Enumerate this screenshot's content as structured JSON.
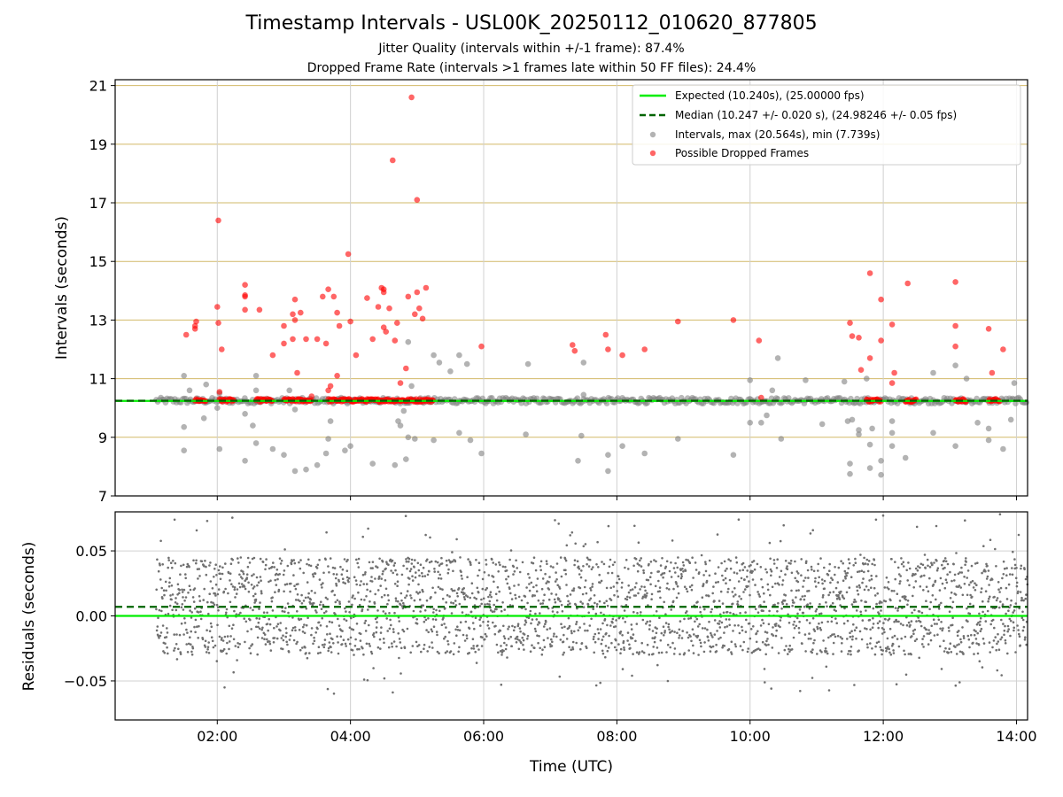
{
  "figure": {
    "title": "Timestamp Intervals - USL00K_20250112_010620_877805",
    "subtitle_1": "Jitter Quality (intervals within +/-1 frame): 87.4%",
    "subtitle_2": "Dropped Frame Rate (intervals >1 frames late within 50 FF files): 24.4%"
  },
  "chart_data": [
    {
      "type": "scatter",
      "panel": "intervals",
      "title": "",
      "xlabel": "",
      "ylabel": "Intervals (seconds)",
      "xlim": [
        "00:28",
        "14:10"
      ],
      "ylim": [
        7,
        21.2
      ],
      "yticks": [
        7,
        9,
        11,
        13,
        15,
        17,
        19,
        21
      ],
      "x_tick_labels": [
        "02:00",
        "04:00",
        "06:00",
        "08:00",
        "10:00",
        "12:00",
        "14:00"
      ],
      "grid": true,
      "h_gridlines_color": "#d2b968",
      "legend_position": "top-right",
      "data_start": "01:05",
      "series": [
        {
          "name": "Expected (10.240s), (25.00000 fps)",
          "kind": "line",
          "style": "solid",
          "color": "#00ee00",
          "y": 10.24
        },
        {
          "name": "Median (10.247 +/- 0.020 s), (24.98246 +/- 0.05 fps)",
          "kind": "line",
          "style": "dashed",
          "color": "#006400",
          "y": 10.247
        },
        {
          "name": "Intervals, max (20.564s), min (7.739s)",
          "kind": "scatter",
          "color": "#808080",
          "band_y": [
            10.15,
            10.35
          ],
          "outliers": [
            [
              "01:30",
              11.1
            ],
            [
              "01:30",
              9.35
            ],
            [
              "01:30",
              8.55
            ],
            [
              "01:35",
              10.6
            ],
            [
              "01:50",
              10.8
            ],
            [
              "01:48",
              9.65
            ],
            [
              "02:00",
              10.0
            ],
            [
              "02:02",
              8.6
            ],
            [
              "02:02",
              10.5
            ],
            [
              "02:25",
              9.8
            ],
            [
              "02:25",
              8.2
            ],
            [
              "02:32",
              9.4
            ],
            [
              "02:35",
              10.6
            ],
            [
              "02:35",
              11.1
            ],
            [
              "02:35",
              8.8
            ],
            [
              "02:50",
              8.6
            ],
            [
              "03:00",
              8.4
            ],
            [
              "03:05",
              10.6
            ],
            [
              "03:10",
              7.85
            ],
            [
              "03:10",
              9.95
            ],
            [
              "03:20",
              7.9
            ],
            [
              "03:30",
              8.05
            ],
            [
              "03:38",
              8.45
            ],
            [
              "03:40",
              8.95
            ],
            [
              "03:42",
              9.55
            ],
            [
              "03:55",
              8.55
            ],
            [
              "04:00",
              8.7
            ],
            [
              "04:20",
              8.1
            ],
            [
              "04:40",
              8.05
            ],
            [
              "04:43",
              9.55
            ],
            [
              "04:45",
              9.4
            ],
            [
              "04:48",
              9.9
            ],
            [
              "04:50",
              8.25
            ],
            [
              "04:52",
              9.0
            ],
            [
              "04:52",
              12.25
            ],
            [
              "04:55",
              10.75
            ],
            [
              "04:58",
              8.95
            ],
            [
              "05:15",
              8.9
            ],
            [
              "05:15",
              11.8
            ],
            [
              "05:20",
              11.55
            ],
            [
              "05:30",
              11.25
            ],
            [
              "05:38",
              9.15
            ],
            [
              "05:38",
              11.8
            ],
            [
              "05:45",
              11.5
            ],
            [
              "05:48",
              8.9
            ],
            [
              "05:58",
              8.45
            ],
            [
              "06:38",
              9.1
            ],
            [
              "06:40",
              11.5
            ],
            [
              "07:25",
              8.2
            ],
            [
              "07:28",
              9.05
            ],
            [
              "07:30",
              11.55
            ],
            [
              "07:30",
              10.45
            ],
            [
              "07:52",
              8.4
            ],
            [
              "07:52",
              7.85
            ],
            [
              "08:05",
              8.7
            ],
            [
              "08:25",
              8.45
            ],
            [
              "08:55",
              8.95
            ],
            [
              "09:45",
              8.4
            ],
            [
              "10:00",
              10.95
            ],
            [
              "10:00",
              9.5
            ],
            [
              "10:10",
              9.5
            ],
            [
              "10:15",
              9.75
            ],
            [
              "10:20",
              10.6
            ],
            [
              "10:25",
              11.7
            ],
            [
              "10:28",
              8.95
            ],
            [
              "10:50",
              10.95
            ],
            [
              "11:05",
              9.45
            ],
            [
              "11:25",
              10.9
            ],
            [
              "11:28",
              9.55
            ],
            [
              "11:30",
              8.1
            ],
            [
              "11:30",
              7.75
            ],
            [
              "11:32",
              9.6
            ],
            [
              "11:38",
              9.25
            ],
            [
              "11:38",
              9.1
            ],
            [
              "11:45",
              11.0
            ],
            [
              "11:48",
              8.75
            ],
            [
              "11:48",
              7.95
            ],
            [
              "11:50",
              9.3
            ],
            [
              "11:58",
              7.72
            ],
            [
              "11:58",
              8.2
            ],
            [
              "12:08",
              9.55
            ],
            [
              "12:08",
              8.7
            ],
            [
              "12:08",
              9.15
            ],
            [
              "12:20",
              8.3
            ],
            [
              "12:45",
              9.15
            ],
            [
              "12:45",
              11.2
            ],
            [
              "13:05",
              8.7
            ],
            [
              "13:05",
              11.45
            ],
            [
              "13:15",
              11.0
            ],
            [
              "13:25",
              9.5
            ],
            [
              "13:35",
              9.3
            ],
            [
              "13:35",
              8.9
            ],
            [
              "13:48",
              8.6
            ],
            [
              "13:55",
              9.6
            ],
            [
              "13:58",
              10.85
            ]
          ]
        },
        {
          "name": "Possible Dropped Frames",
          "kind": "scatter",
          "color": "#ff0000",
          "clusters": [
            [
              "01:40",
              "01:50",
              10.26
            ],
            [
              "02:02",
              "02:15",
              10.26
            ],
            [
              "02:35",
              "02:50",
              10.26
            ],
            [
              "03:00",
              "03:25",
              10.26
            ],
            [
              "03:40",
              "05:15",
              10.26
            ],
            [
              "11:45",
              "11:58",
              10.26
            ],
            [
              "12:20",
              "12:30",
              10.26
            ],
            [
              "13:05",
              "13:15",
              10.26
            ],
            [
              "13:35",
              "13:45",
              10.26
            ]
          ],
          "points": [
            [
              "01:32",
              12.5
            ],
            [
              "01:40",
              12.7
            ],
            [
              "01:40",
              12.8
            ],
            [
              "01:41",
              12.95
            ],
            [
              "02:00",
              13.45
            ],
            [
              "02:01",
              12.9
            ],
            [
              "02:01",
              16.4
            ],
            [
              "02:04",
              12.0
            ],
            [
              "02:02",
              10.55
            ],
            [
              "02:25",
              14.2
            ],
            [
              "02:25",
              13.85
            ],
            [
              "02:25",
              13.8
            ],
            [
              "02:25",
              13.35
            ],
            [
              "02:38",
              13.35
            ],
            [
              "02:50",
              11.8
            ],
            [
              "03:00",
              12.8
            ],
            [
              "03:00",
              12.2
            ],
            [
              "03:08",
              13.2
            ],
            [
              "03:08",
              12.35
            ],
            [
              "03:10",
              13.0
            ],
            [
              "03:10",
              13.7
            ],
            [
              "03:12",
              11.2
            ],
            [
              "03:15",
              13.25
            ],
            [
              "03:20",
              12.35
            ],
            [
              "03:25",
              10.4
            ],
            [
              "03:30",
              12.35
            ],
            [
              "03:35",
              13.8
            ],
            [
              "03:38",
              12.2
            ],
            [
              "03:40",
              10.6
            ],
            [
              "03:40",
              14.05
            ],
            [
              "03:42",
              10.75
            ],
            [
              "03:45",
              13.8
            ],
            [
              "03:48",
              11.1
            ],
            [
              "03:48",
              13.25
            ],
            [
              "03:50",
              12.8
            ],
            [
              "03:58",
              15.25
            ],
            [
              "04:00",
              12.95
            ],
            [
              "04:05",
              11.8
            ],
            [
              "04:15",
              13.75
            ],
            [
              "04:20",
              12.35
            ],
            [
              "04:25",
              13.45
            ],
            [
              "04:28",
              14.1
            ],
            [
              "04:30",
              14.05
            ],
            [
              "04:30",
              12.75
            ],
            [
              "04:30",
              13.95
            ],
            [
              "04:32",
              12.6
            ],
            [
              "04:35",
              13.4
            ],
            [
              "04:38",
              18.45
            ],
            [
              "04:40",
              12.3
            ],
            [
              "04:42",
              12.9
            ],
            [
              "04:45",
              10.85
            ],
            [
              "04:50",
              11.35
            ],
            [
              "04:52",
              13.8
            ],
            [
              "04:55",
              20.6
            ],
            [
              "04:58",
              13.2
            ],
            [
              "05:00",
              17.1
            ],
            [
              "05:00",
              13.95
            ],
            [
              "05:02",
              13.4
            ],
            [
              "05:05",
              13.05
            ],
            [
              "05:08",
              14.1
            ],
            [
              "05:58",
              12.1
            ],
            [
              "07:20",
              12.15
            ],
            [
              "07:22",
              11.95
            ],
            [
              "07:50",
              12.5
            ],
            [
              "07:52",
              12.0
            ],
            [
              "08:05",
              11.8
            ],
            [
              "08:25",
              12.0
            ],
            [
              "08:55",
              12.95
            ],
            [
              "09:45",
              13.0
            ],
            [
              "10:08",
              12.3
            ],
            [
              "10:10",
              10.35
            ],
            [
              "11:30",
              12.9
            ],
            [
              "11:32",
              12.45
            ],
            [
              "11:38",
              12.4
            ],
            [
              "11:40",
              11.3
            ],
            [
              "11:48",
              14.6
            ],
            [
              "11:48",
              11.7
            ],
            [
              "11:58",
              13.7
            ],
            [
              "11:58",
              12.3
            ],
            [
              "12:08",
              12.85
            ],
            [
              "12:10",
              11.2
            ],
            [
              "12:08",
              10.85
            ],
            [
              "12:22",
              14.25
            ],
            [
              "13:05",
              14.3
            ],
            [
              "13:05",
              12.8
            ],
            [
              "13:05",
              12.1
            ],
            [
              "13:35",
              12.7
            ],
            [
              "13:38",
              11.2
            ],
            [
              "13:48",
              12.0
            ]
          ]
        }
      ]
    },
    {
      "type": "scatter",
      "panel": "residuals",
      "title": "",
      "xlabel": "Time (UTC)",
      "ylabel": "Residuals (seconds)",
      "xlim": [
        "00:28",
        "14:10"
      ],
      "ylim": [
        -0.08,
        0.08
      ],
      "yticks": [
        -0.05,
        0.0,
        0.05
      ],
      "ytick_labels": [
        "−0.05",
        "0.00",
        "0.05"
      ],
      "x_tick_labels": [
        "02:00",
        "04:00",
        "06:00",
        "08:00",
        "10:00",
        "12:00",
        "14:00"
      ],
      "grid": true,
      "series": [
        {
          "name": "",
          "kind": "scatter",
          "color": "#707070",
          "y_range": [
            -0.06,
            0.08
          ],
          "typical_y_range": [
            -0.03,
            0.045
          ]
        },
        {
          "name": "",
          "kind": "line",
          "style": "solid",
          "color": "#00ee00",
          "y": 0.0
        },
        {
          "name": "",
          "kind": "line",
          "style": "dashed",
          "color": "#006400",
          "y": 0.007
        }
      ]
    }
  ]
}
